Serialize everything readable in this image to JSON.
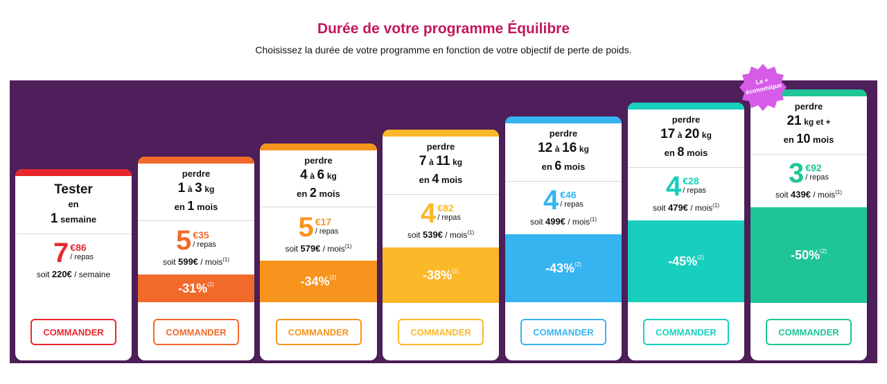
{
  "header": {
    "title": "Durée de votre programme Équilibre",
    "subtitle": "Choisissez la durée de votre programme en fonction de votre objectif de perte de poids."
  },
  "badge": {
    "line1": "Le +",
    "line2": "économique",
    "color": "#d65ce8"
  },
  "common": {
    "perdre": "perdre",
    "a": "à",
    "kg": "kg",
    "en": "en",
    "mois": "mois",
    "per_meal": "/ repas",
    "soit": "soit",
    "per_month": "/ mois",
    "note1": "(1)",
    "note2": "(2)",
    "order_label": "COMMANDER"
  },
  "tester": {
    "name": "Tester",
    "en": "en",
    "duration_num": "1",
    "duration_unit": "semaine",
    "price_euros": "7",
    "price_cents": "€86",
    "total": "220€",
    "total_unit": "/ semaine",
    "color": "#e8282e"
  },
  "plans": [
    {
      "kg_from": "1",
      "kg_to": "3",
      "months": "1",
      "price_euros": "5",
      "price_cents": "€35",
      "monthly": "599€",
      "discount": "-31%",
      "color": "#f26a2a"
    },
    {
      "kg_from": "4",
      "kg_to": "6",
      "months": "2",
      "price_euros": "5",
      "price_cents": "€17",
      "monthly": "579€",
      "discount": "-34%",
      "color": "#f7941d"
    },
    {
      "kg_from": "7",
      "kg_to": "11",
      "months": "4",
      "price_euros": "4",
      "price_cents": "€82",
      "monthly": "539€",
      "discount": "-38%",
      "color": "#fbb829"
    },
    {
      "kg_from": "12",
      "kg_to": "16",
      "months": "6",
      "price_euros": "4",
      "price_cents": "€46",
      "monthly": "499€",
      "discount": "-43%",
      "color": "#35b4f0"
    },
    {
      "kg_from": "17",
      "kg_to": "20",
      "months": "8",
      "price_euros": "4",
      "price_cents": "€28",
      "monthly": "479€",
      "discount": "-45%",
      "color": "#18cfbe"
    },
    {
      "kg_min": "21",
      "kg_suffix": "kg et +",
      "months": "10",
      "price_euros": "3",
      "price_cents": "€92",
      "monthly": "439€",
      "discount": "-50%",
      "color": "#1fc596"
    }
  ]
}
